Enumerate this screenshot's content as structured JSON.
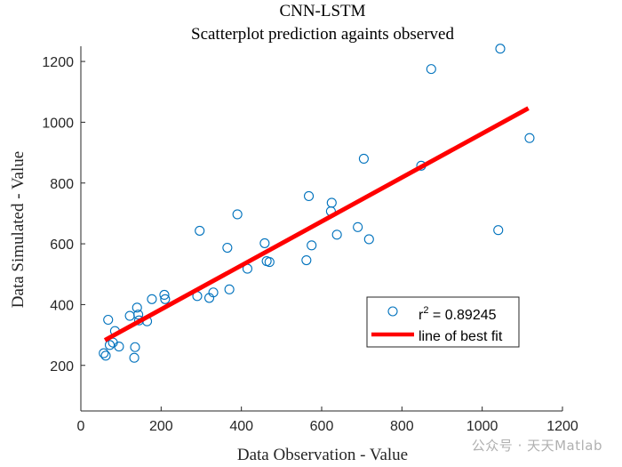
{
  "chart_data": {
    "type": "scatter",
    "title": "CNN-LSTM",
    "subtitle": "Scatterplot prediction againts observed",
    "xlabel": "Data Observation - Value",
    "ylabel": "Data Simulated - Value",
    "xlim": [
      0,
      1200
    ],
    "ylim": [
      50,
      1250
    ],
    "xticks": [
      "0",
      "200",
      "400",
      "600",
      "800",
      "1000",
      "1200"
    ],
    "xtick_values": [
      0,
      200,
      400,
      600,
      800,
      1000,
      1200
    ],
    "yticks": [
      "200",
      "400",
      "600",
      "800",
      "1000",
      "1200"
    ],
    "ytick_values": [
      200,
      400,
      600,
      800,
      1000,
      1200
    ],
    "grid": false,
    "legend_position": "lower-right",
    "legend": {
      "scatter_label_prefix": "r",
      "scatter_label_exponent": "2",
      "scatter_label_suffix": " = 0.89245",
      "fit_label": "line of best fit"
    },
    "colors": {
      "marker": "#0072BD",
      "fit_line": "#FF0000",
      "axis": "#262626"
    },
    "series": [
      {
        "type": "scatter",
        "marker": "circle-open",
        "points": [
          [
            57,
            240
          ],
          [
            62,
            232
          ],
          [
            68,
            350
          ],
          [
            72,
            267
          ],
          [
            80,
            275
          ],
          [
            85,
            313
          ],
          [
            95,
            262
          ],
          [
            122,
            363
          ],
          [
            133,
            225
          ],
          [
            135,
            260
          ],
          [
            140,
            390
          ],
          [
            143,
            367
          ],
          [
            145,
            348
          ],
          [
            165,
            345
          ],
          [
            177,
            418
          ],
          [
            208,
            432
          ],
          [
            210,
            418
          ],
          [
            290,
            428
          ],
          [
            296,
            643
          ],
          [
            320,
            422
          ],
          [
            330,
            440
          ],
          [
            365,
            587
          ],
          [
            370,
            450
          ],
          [
            390,
            697
          ],
          [
            415,
            518
          ],
          [
            458,
            602
          ],
          [
            463,
            543
          ],
          [
            470,
            540
          ],
          [
            562,
            546
          ],
          [
            568,
            757
          ],
          [
            575,
            595
          ],
          [
            623,
            707
          ],
          [
            625,
            735
          ],
          [
            638,
            630
          ],
          [
            690,
            655
          ],
          [
            705,
            880
          ],
          [
            718,
            615
          ],
          [
            848,
            857
          ],
          [
            873,
            1175
          ],
          [
            1040,
            645
          ],
          [
            1045,
            1242
          ],
          [
            1118,
            948
          ]
        ]
      },
      {
        "type": "line",
        "name": "line of best fit",
        "x": [
          60,
          1115
        ],
        "y": [
          283,
          1046
        ]
      }
    ]
  },
  "watermark": "公众号 · 天天Matlab"
}
